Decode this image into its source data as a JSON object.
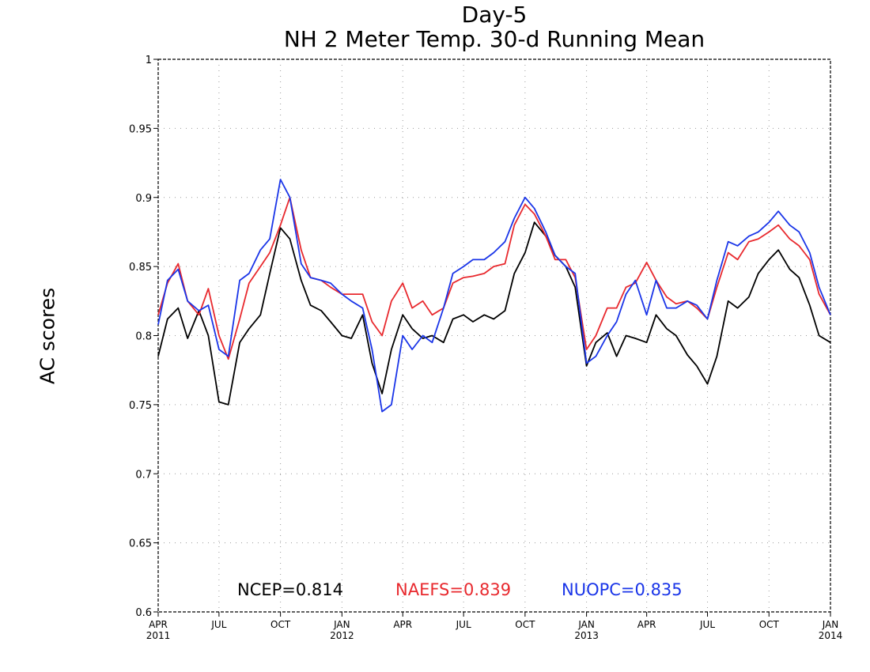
{
  "chart_data": {
    "type": "line",
    "title": "Day-5",
    "subtitle": "NH 2 Meter Temp. 30-d Running Mean",
    "xlabel": "",
    "ylabel": "AC scores",
    "ylim": [
      0.6,
      1.0
    ],
    "yticks": [
      "0.6",
      "0.65",
      "0.7",
      "0.75",
      "0.8",
      "0.85",
      "0.9",
      "0.95",
      "1"
    ],
    "xlim": [
      "2011-04-01",
      "2014-01-01"
    ],
    "xticks": [
      {
        "date": "2011-04-01",
        "line1": "APR",
        "line2": "2011"
      },
      {
        "date": "2011-07-01",
        "line1": "JUL",
        "line2": ""
      },
      {
        "date": "2011-10-01",
        "line1": "OCT",
        "line2": ""
      },
      {
        "date": "2012-01-01",
        "line1": "JAN",
        "line2": "2012"
      },
      {
        "date": "2012-04-01",
        "line1": "APR",
        "line2": ""
      },
      {
        "date": "2012-07-01",
        "line1": "JUL",
        "line2": ""
      },
      {
        "date": "2012-10-01",
        "line1": "OCT",
        "line2": ""
      },
      {
        "date": "2013-01-01",
        "line1": "JAN",
        "line2": "2013"
      },
      {
        "date": "2013-04-01",
        "line1": "APR",
        "line2": ""
      },
      {
        "date": "2013-07-01",
        "line1": "JUL",
        "line2": ""
      },
      {
        "date": "2013-10-01",
        "line1": "OCT",
        "line2": ""
      },
      {
        "date": "2014-01-01",
        "line1": "JAN",
        "line2": "2014"
      }
    ],
    "grid": true,
    "legend_placement": "bottom",
    "x": [
      "2011-04-01",
      "2011-04-15",
      "2011-05-01",
      "2011-05-15",
      "2011-06-01",
      "2011-06-15",
      "2011-07-01",
      "2011-07-15",
      "2011-08-01",
      "2011-08-15",
      "2011-09-01",
      "2011-09-15",
      "2011-10-01",
      "2011-10-15",
      "2011-11-01",
      "2011-11-15",
      "2011-12-01",
      "2011-12-15",
      "2012-01-01",
      "2012-01-15",
      "2012-02-01",
      "2012-02-15",
      "2012-03-01",
      "2012-03-15",
      "2012-04-01",
      "2012-04-15",
      "2012-05-01",
      "2012-05-15",
      "2012-06-01",
      "2012-06-15",
      "2012-07-01",
      "2012-07-15",
      "2012-08-01",
      "2012-08-15",
      "2012-09-01",
      "2012-09-15",
      "2012-10-01",
      "2012-10-15",
      "2012-11-01",
      "2012-11-15",
      "2012-12-01",
      "2012-12-15",
      "2013-01-01",
      "2013-01-15",
      "2013-02-01",
      "2013-02-15",
      "2013-03-01",
      "2013-03-15",
      "2013-04-01",
      "2013-04-15",
      "2013-05-01",
      "2013-05-15",
      "2013-06-01",
      "2013-06-15",
      "2013-07-01",
      "2013-07-15",
      "2013-08-01",
      "2013-08-15",
      "2013-09-01",
      "2013-09-15",
      "2013-10-01",
      "2013-10-15",
      "2013-11-01",
      "2013-11-15",
      "2013-12-01",
      "2013-12-15",
      "2014-01-01"
    ],
    "series": [
      {
        "name": "NCEP",
        "color": "#000000",
        "label": "NCEP=0.814",
        "values": [
          0.785,
          0.812,
          0.82,
          0.798,
          0.818,
          0.8,
          0.752,
          0.75,
          0.795,
          0.805,
          0.815,
          0.845,
          0.878,
          0.87,
          0.84,
          0.822,
          0.818,
          0.81,
          0.8,
          0.798,
          0.815,
          0.78,
          0.758,
          0.79,
          0.815,
          0.805,
          0.798,
          0.8,
          0.795,
          0.812,
          0.815,
          0.81,
          0.815,
          0.812,
          0.818,
          0.845,
          0.86,
          0.882,
          0.872,
          0.858,
          0.85,
          0.835,
          0.778,
          0.795,
          0.802,
          0.785,
          0.8,
          0.798,
          0.795,
          0.815,
          0.805,
          0.8,
          0.786,
          0.778,
          0.765,
          0.785,
          0.825,
          0.82,
          0.828,
          0.845,
          0.855,
          0.862,
          0.848,
          0.842,
          0.822,
          0.8,
          0.795
        ]
      },
      {
        "name": "NAEFS",
        "color": "#e8292e",
        "label": "NAEFS=0.839",
        "values": [
          0.815,
          0.838,
          0.852,
          0.825,
          0.815,
          0.834,
          0.8,
          0.783,
          0.812,
          0.838,
          0.85,
          0.86,
          0.88,
          0.9,
          0.862,
          0.842,
          0.84,
          0.835,
          0.83,
          0.83,
          0.83,
          0.81,
          0.8,
          0.825,
          0.838,
          0.82,
          0.825,
          0.815,
          0.82,
          0.838,
          0.842,
          0.843,
          0.845,
          0.85,
          0.852,
          0.88,
          0.895,
          0.888,
          0.872,
          0.855,
          0.855,
          0.842,
          0.79,
          0.8,
          0.82,
          0.82,
          0.835,
          0.838,
          0.853,
          0.84,
          0.828,
          0.823,
          0.825,
          0.82,
          0.812,
          0.835,
          0.86,
          0.855,
          0.868,
          0.87,
          0.875,
          0.88,
          0.87,
          0.865,
          0.855,
          0.83,
          0.815
        ]
      },
      {
        "name": "NUOPC",
        "color": "#1a35e8",
        "label": "NUOPC=0.835",
        "values": [
          0.808,
          0.84,
          0.848,
          0.825,
          0.818,
          0.822,
          0.79,
          0.785,
          0.84,
          0.845,
          0.862,
          0.87,
          0.913,
          0.9,
          0.852,
          0.842,
          0.84,
          0.838,
          0.83,
          0.825,
          0.82,
          0.79,
          0.745,
          0.75,
          0.8,
          0.79,
          0.8,
          0.795,
          0.82,
          0.845,
          0.85,
          0.855,
          0.855,
          0.86,
          0.868,
          0.885,
          0.9,
          0.892,
          0.875,
          0.858,
          0.85,
          0.845,
          0.78,
          0.785,
          0.8,
          0.81,
          0.83,
          0.84,
          0.815,
          0.84,
          0.82,
          0.82,
          0.825,
          0.822,
          0.812,
          0.84,
          0.868,
          0.865,
          0.872,
          0.875,
          0.882,
          0.89,
          0.88,
          0.875,
          0.86,
          0.835,
          0.815
        ]
      }
    ]
  }
}
